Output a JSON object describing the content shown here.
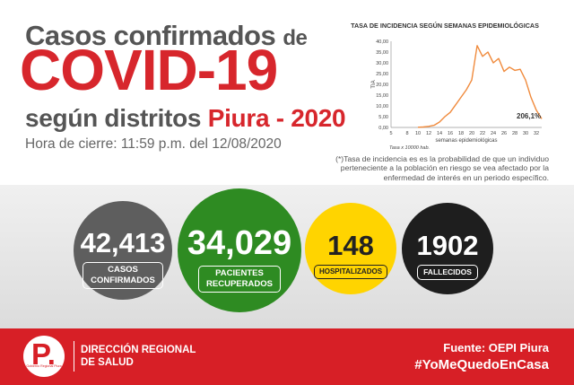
{
  "header": {
    "line1_main": "Casos confirmados",
    "line1_de": "de",
    "line2": "COVID-19",
    "line3_main": "según distritos",
    "line3_red": "Piura - 2020",
    "line4": "Hora de cierre: 11:59 p.m. del 12/08/2020"
  },
  "chart_data": {
    "type": "line",
    "title": "TASA DE INCIDENCIA SEGÚN SEMANAS EPIDEMIOLÓGICAS",
    "xlabel": "semanas epidemiológicas",
    "ylabel": "TIA",
    "footnote": "Tasa x 10000 hab.",
    "annotation": "206,1%",
    "x_ticks": [
      5,
      8,
      10,
      12,
      14,
      16,
      18,
      20,
      22,
      24,
      26,
      28,
      30,
      32
    ],
    "y_ticks": [
      "0,00",
      "5,00",
      "10,00",
      "15,00",
      "20,00",
      "25,00",
      "30,00",
      "35,00",
      "40,00"
    ],
    "ylim": [
      0,
      40
    ],
    "xlim": [
      5,
      33
    ],
    "series": [
      {
        "x": [
          10,
          11,
          12,
          13,
          14,
          15,
          16,
          17,
          18,
          19,
          20,
          21,
          22,
          23,
          24,
          25,
          26,
          27,
          28,
          29,
          30,
          31,
          32,
          33
        ],
        "y": [
          0.1,
          0.2,
          0.5,
          1.0,
          2.5,
          5.0,
          7.0,
          10.5,
          14.0,
          17.5,
          22.0,
          38.0,
          33.0,
          35.0,
          30.0,
          32.0,
          26.0,
          28.0,
          26.5,
          27.0,
          22.0,
          14.0,
          8.0,
          4.0
        ],
        "color": "#f08a3c"
      }
    ]
  },
  "note": "(*)Tasa de incidencia es es la probabilidad de que un individuo perteneciente a la población en riesgo se vea afectado por la enfermedad de interés en un periodo específico.",
  "stats": [
    {
      "value": "42,413",
      "label_1": "CASOS",
      "label_2": "CONFIRMADOS",
      "color": "#5e5e5e"
    },
    {
      "value": "34,029",
      "label_1": "PACIENTES",
      "label_2": "RECUPERADOS",
      "color": "#2e8b22"
    },
    {
      "value": "148",
      "label_1": "HOSPITALIZADOS",
      "color": "#ffd400"
    },
    {
      "value": "1902",
      "label_1": "FALLECIDOS",
      "color": "#1e1e1e"
    }
  ],
  "footer": {
    "logo_letter": "P.",
    "logo_small": "Gobierno Regional Piura",
    "org_line1": "DIRECCIÓN REGIONAL",
    "org_line2": "DE SALUD",
    "source": "Fuente: OEPI Piura",
    "hashtag": "#YoMeQuedoEnCasa"
  }
}
